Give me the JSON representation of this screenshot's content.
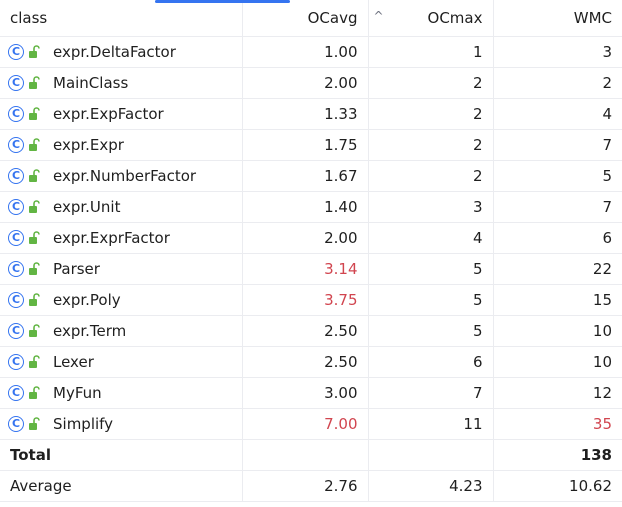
{
  "colors": {
    "accent": "#3574f0",
    "warning_text": "#d1454f",
    "class_icon": "#3574f0",
    "lock_icon": "#62b543"
  },
  "columns": {
    "class": "class",
    "ocavg": "OCavg",
    "ocmax": "OCmax",
    "wmc": "WMC"
  },
  "sort_indicator": "^",
  "rows": [
    {
      "name": "expr.DeltaFactor",
      "ocavg": "1.00",
      "ocmax": "1",
      "wmc": "3"
    },
    {
      "name": "MainClass",
      "ocavg": "2.00",
      "ocmax": "2",
      "wmc": "2"
    },
    {
      "name": "expr.ExpFactor",
      "ocavg": "1.33",
      "ocmax": "2",
      "wmc": "4"
    },
    {
      "name": "expr.Expr",
      "ocavg": "1.75",
      "ocmax": "2",
      "wmc": "7"
    },
    {
      "name": "expr.NumberFactor",
      "ocavg": "1.67",
      "ocmax": "2",
      "wmc": "5"
    },
    {
      "name": "expr.Unit",
      "ocavg": "1.40",
      "ocmax": "3",
      "wmc": "7"
    },
    {
      "name": "expr.ExprFactor",
      "ocavg": "2.00",
      "ocmax": "4",
      "wmc": "6"
    },
    {
      "name": "Parser",
      "ocavg": "3.14",
      "ocmax": "5",
      "wmc": "22"
    },
    {
      "name": "expr.Poly",
      "ocavg": "3.75",
      "ocmax": "5",
      "wmc": "15"
    },
    {
      "name": "expr.Term",
      "ocavg": "2.50",
      "ocmax": "5",
      "wmc": "10"
    },
    {
      "name": "Lexer",
      "ocavg": "2.50",
      "ocmax": "6",
      "wmc": "10"
    },
    {
      "name": "MyFun",
      "ocavg": "3.00",
      "ocmax": "7",
      "wmc": "12"
    },
    {
      "name": "Simplify",
      "ocavg": "7.00",
      "ocmax": "11",
      "wmc": "35"
    }
  ],
  "total": {
    "label": "Total",
    "ocavg": "",
    "ocmax": "",
    "wmc": "138"
  },
  "average": {
    "label": "Average",
    "ocavg": "2.76",
    "ocmax": "4.23",
    "wmc": "10.62"
  }
}
